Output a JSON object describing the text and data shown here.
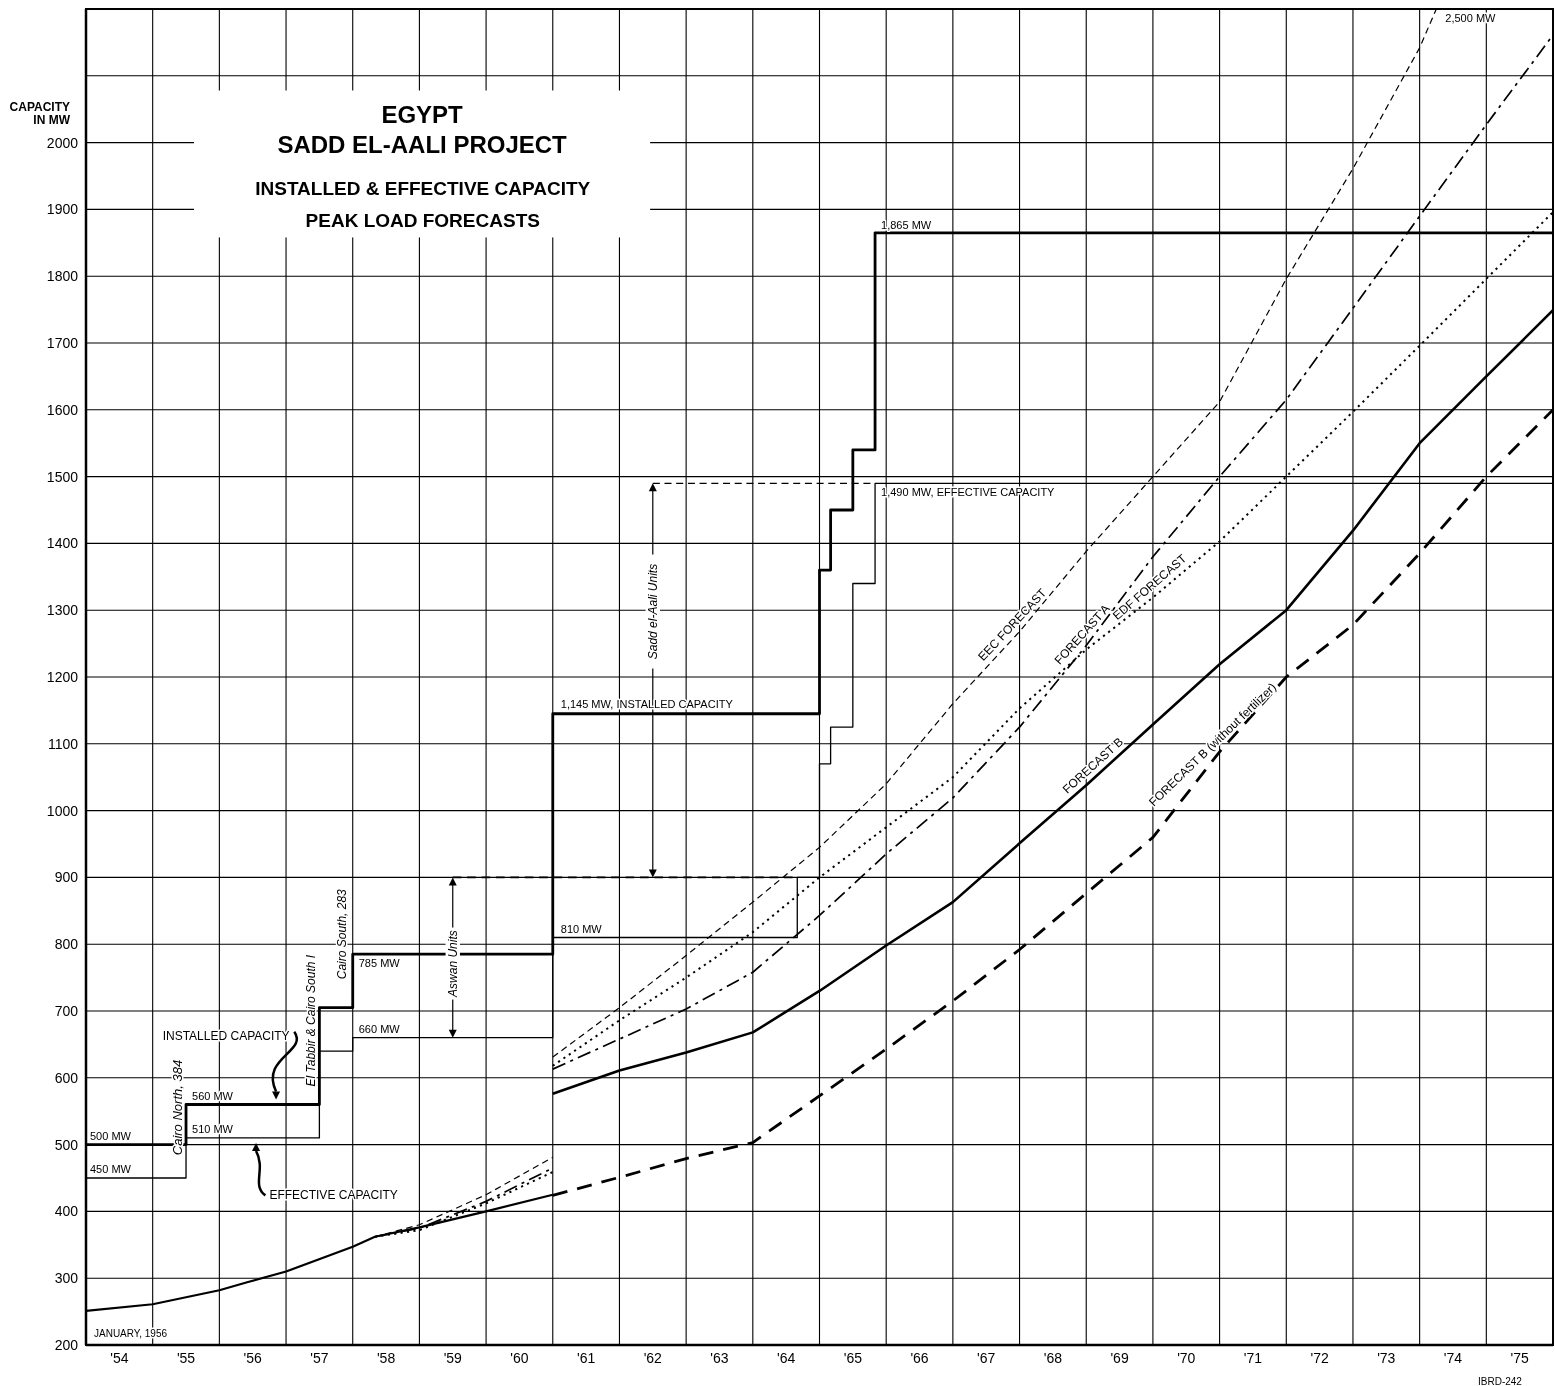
{
  "chart_data": {
    "type": "line",
    "title": "EGYPT",
    "subtitle": "SADD EL-AALI PROJECT",
    "ylabel": "CAPACITY IN MW",
    "xlim": [
      "1954-01",
      "1976-01"
    ],
    "xticks": [
      {
        "value": "1954-01",
        "label": null
      },
      {
        "value": "1954-07",
        "label": "'54"
      },
      {
        "value": "1955-01",
        "label": null
      },
      {
        "value": "1955-07",
        "label": "'55"
      },
      {
        "value": "1956-01",
        "label": null
      },
      {
        "value": "1956-07",
        "label": "'56"
      },
      {
        "value": "1957-01",
        "label": null
      },
      {
        "value": "1957-07",
        "label": "'57"
      },
      {
        "value": "1958-01",
        "label": null
      },
      {
        "value": "1958-07",
        "label": "'58"
      },
      {
        "value": "1959-01",
        "label": null
      },
      {
        "value": "1959-07",
        "label": "'59"
      },
      {
        "value": "1960-01",
        "label": null
      },
      {
        "value": "1960-07",
        "label": "'60"
      },
      {
        "value": "1961-01",
        "label": null
      },
      {
        "value": "1961-07",
        "label": "'61"
      },
      {
        "value": "1962-01",
        "label": null
      },
      {
        "value": "1962-07",
        "label": "'62"
      },
      {
        "value": "1963-01",
        "label": null
      },
      {
        "value": "1963-07",
        "label": "'63"
      },
      {
        "value": "1964-01",
        "label": null
      },
      {
        "value": "1964-07",
        "label": "'64"
      },
      {
        "value": "1965-01",
        "label": null
      },
      {
        "value": "1965-07",
        "label": "'65"
      },
      {
        "value": "1966-01",
        "label": null
      },
      {
        "value": "1966-07",
        "label": "'66"
      },
      {
        "value": "1967-01",
        "label": null
      },
      {
        "value": "1967-07",
        "label": "'67"
      },
      {
        "value": "1968-01",
        "label": null
      },
      {
        "value": "1968-07",
        "label": "'68"
      },
      {
        "value": "1969-01",
        "label": null
      },
      {
        "value": "1969-07",
        "label": "'69"
      },
      {
        "value": "1970-01",
        "label": null
      },
      {
        "value": "1970-07",
        "label": "'70"
      },
      {
        "value": "1971-01",
        "label": null
      },
      {
        "value": "1971-07",
        "label": "'71"
      },
      {
        "value": "1972-01",
        "label": null
      },
      {
        "value": "1972-07",
        "label": "'72"
      },
      {
        "value": "1973-01",
        "label": null
      },
      {
        "value": "1973-07",
        "label": "'73"
      },
      {
        "value": "1974-01",
        "label": null
      },
      {
        "value": "1974-07",
        "label": "'74"
      },
      {
        "value": "1975-01",
        "label": null
      },
      {
        "value": "1975-07",
        "label": "'75"
      },
      {
        "value": "1976-01",
        "label": null
      }
    ],
    "ylim": [
      200,
      2200
    ],
    "yticks": [
      200,
      300,
      400,
      500,
      600,
      700,
      800,
      900,
      1000,
      1100,
      1200,
      1300,
      1400,
      1500,
      1600,
      1700,
      1800,
      1900,
      2000,
      {
        "value": 2100,
        "label": null
      },
      {
        "value": 2200,
        "label": null
      }
    ],
    "grid": true,
    "series": [
      {
        "name": "INSTALLED CAPACITY",
        "type": "step",
        "color": "#000000",
        "line_style": "solid",
        "x": [
          "1954-01",
          "1955-07",
          "1957-07",
          "1958-01",
          "1961-01",
          "1965-01",
          "1965-03",
          "1965-07",
          "1965-11",
          "1976-01"
        ],
        "values": [
          500,
          560,
          705,
          785,
          1145,
          1360,
          1450,
          1540,
          1865,
          1865
        ]
      },
      {
        "name": "EFFECTIVE CAPACITY",
        "type": "step",
        "color": "#000000",
        "line_style": "solid",
        "x": [
          "1954-01",
          "1955-07",
          "1957-07",
          "1958-01",
          "1961-01",
          "1964-09",
          "1965-01",
          "1965-03",
          "1965-07",
          "1965-11",
          "1976-01"
        ],
        "values": [
          450,
          510,
          640,
          660,
          810,
          900,
          1070,
          1125,
          1340,
          1490,
          1490
        ]
      },
      {
        "type": "line",
        "color": "#000000",
        "line_style": "solid",
        "x": [
          "1954-01",
          "1955-01",
          "1956-01",
          "1956-06",
          "1957-01",
          "1958-01",
          "1958-05",
          "1959-01",
          "1960-01",
          "1961-01"
        ],
        "values": [
          251,
          261,
          282,
          294,
          310,
          347,
          362,
          376,
          400,
          425
        ]
      },
      {
        "type": "line",
        "color": "#000000",
        "line_style": "dashed",
        "x": [
          "1959-07",
          "1964-09"
        ],
        "values": [
          900,
          900
        ]
      },
      {
        "type": "line",
        "color": "#000000",
        "line_style": "dashed",
        "x": [
          "1962-07",
          "1965-11"
        ],
        "values": [
          1490,
          1490
        ]
      },
      {
        "name": "EEC FORECAST",
        "type": "line",
        "color": "#000000",
        "line_style": "dashed",
        "x": [
          "1961-01",
          "1962-01",
          "1963-01",
          "1964-01",
          "1965-01",
          "1966-01",
          "1967-01",
          "1968-01",
          "1969-01",
          "1970-01",
          "1971-01",
          "1972-01",
          "1973-01",
          "1974-01",
          "1974-04"
        ],
        "values": [
          631,
          705,
          783,
          863,
          945,
          1040,
          1160,
          1268,
          1388,
          1500,
          1612,
          1796,
          1961,
          2142,
          2200
        ]
      },
      {
        "name": "FORECAST A",
        "type": "line",
        "color": "#000000",
        "line_style": "dashdot",
        "x": [
          "1961-01",
          "1962-01",
          "1963-01",
          "1964-01",
          "1965-01",
          "1966-01",
          "1967-01",
          "1968-01",
          "1969-01",
          "1970-01",
          "1971-01",
          "1972-01",
          "1973-01",
          "1974-01",
          "1975-01",
          "1976-01"
        ],
        "values": [
          613,
          658,
          703,
          758,
          843,
          935,
          1019,
          1125,
          1247,
          1380,
          1500,
          1615,
          1752,
          1890,
          2027,
          2161
        ]
      },
      {
        "name": "EDF FORECAST",
        "type": "line",
        "color": "#000000",
        "line_style": "dotted",
        "x": [
          "1961-01",
          "1962-01",
          "1963-01",
          "1964-01",
          "1965-01",
          "1966-01",
          "1967-01",
          "1968-01",
          "1969-01",
          "1970-01",
          "1971-01",
          "1972-01",
          "1973-01",
          "1974-01",
          "1975-01",
          "1976-01"
        ],
        "values": [
          618,
          686,
          750,
          818,
          900,
          975,
          1050,
          1153,
          1241,
          1319,
          1403,
          1500,
          1597,
          1696,
          1796,
          1896
        ]
      },
      {
        "name": "FORECAST B",
        "type": "line",
        "color": "#000000",
        "line_style": "solid",
        "x": [
          "1961-01",
          "1962-01",
          "1963-01",
          "1964-01",
          "1965-01",
          "1966-01",
          "1967-01",
          "1968-01",
          "1969-01",
          "1970-01",
          "1971-01",
          "1972-01",
          "1973-01",
          "1974-01",
          "1975-01",
          "1976-01"
        ],
        "values": [
          576,
          611,
          638,
          668,
          730,
          798,
          863,
          951,
          1038,
          1129,
          1219,
          1300,
          1419,
          1550,
          1650,
          1749
        ]
      },
      {
        "name": "FORECAST B (without fertilizer)",
        "type": "line",
        "color": "#000000",
        "line_style": "dashed",
        "x": [
          "1961-01",
          "1962-01",
          "1963-01",
          "1964-01",
          "1965-01",
          "1966-01",
          "1967-01",
          "1968-01",
          "1969-01",
          "1970-01",
          "1971-01",
          "1972-01",
          "1973-01",
          "1974-01",
          "1975-01",
          "1976-01"
        ],
        "values": [
          424,
          451,
          479,
          503,
          573,
          643,
          715,
          792,
          876,
          960,
          1088,
          1200,
          1278,
          1385,
          1500,
          1600
        ]
      },
      {
        "type": "line",
        "color": "#000000",
        "line_style": "dashed",
        "x": [
          "1958-05",
          "1959-01",
          "1960-01",
          "1961-01"
        ],
        "values": [
          362,
          380,
          425,
          481
        ]
      },
      {
        "type": "line",
        "color": "#000000",
        "line_style": "dashdot",
        "x": [
          "1958-05",
          "1959-01",
          "1960-01",
          "1961-01"
        ],
        "values": [
          362,
          375,
          415,
          465
        ]
      },
      {
        "type": "line",
        "color": "#000000",
        "line_style": "dotted",
        "x": [
          "1958-05",
          "1959-01",
          "1960-01",
          "1961-01"
        ],
        "values": [
          362,
          372,
          412,
          459
        ]
      }
    ],
    "annotations": [
      "INSTALLED & EFFECTIVE CAPACITY",
      "PEAK LOAD FORECASTS",
      {
        "text": "500 MW",
        "x": "1954-01",
        "y": 500
      },
      {
        "text": "450 MW",
        "x": "1954-01",
        "y": 450
      },
      {
        "text": "560 MW",
        "x": "1955-07",
        "y": 560
      },
      {
        "text": "510 MW",
        "x": "1955-07",
        "y": 510
      },
      {
        "text": "785 MW",
        "x": "1958-01",
        "y": 785
      },
      {
        "text": "660 MW",
        "x": "1958-01",
        "y": 660
      },
      {
        "text": "810 MW",
        "x": "1961-01",
        "y": 810
      },
      {
        "text": "1,145 MW, INSTALLED CAPACITY",
        "x": "1961-01",
        "y": 1145
      },
      {
        "text": "1,490 MW, EFFECTIVE CAPACITY",
        "x": "1965-11",
        "y": 1490
      },
      {
        "text": "1,865 MW",
        "x": "1965-11",
        "y": 1865
      },
      {
        "text": "2,500 MW",
        "x": "1974-04",
        "y": 2200
      },
      {
        "text": "Cairo North, 384",
        "x": "1955-07",
        "y": 560
      },
      {
        "text": "El Tabbir & Cairo South I",
        "x": "1957-07",
        "y": 705
      },
      {
        "text": "Cairo South, 283",
        "x": "1958-01",
        "y": 785
      },
      "Aswan Units",
      "Sadd el-Aali Units",
      "JANUARY, 1956",
      "IBRD-242"
    ]
  }
}
